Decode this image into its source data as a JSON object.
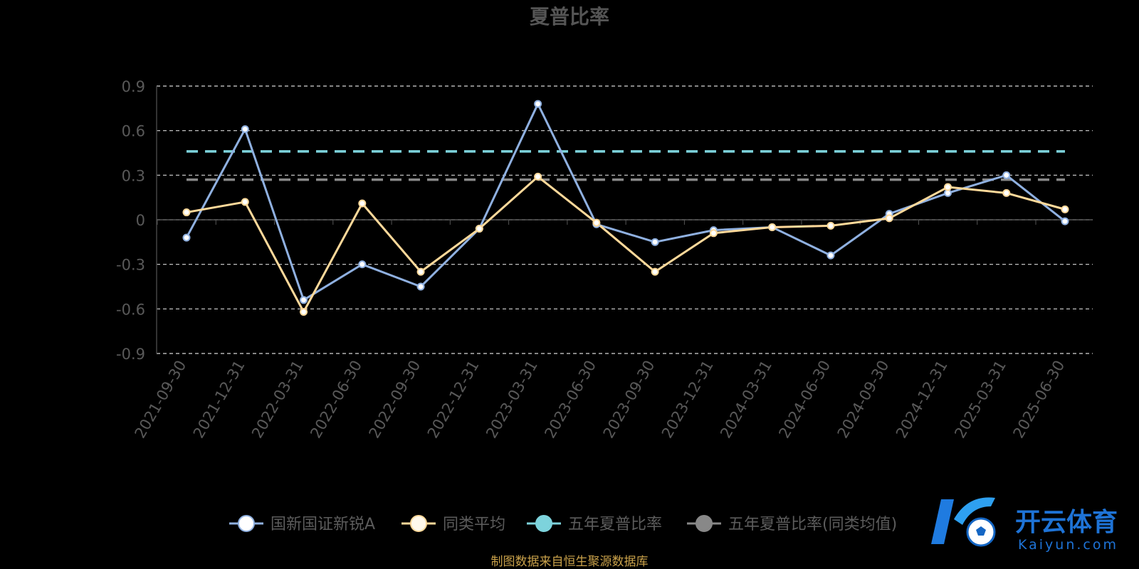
{
  "chart_data": {
    "type": "line",
    "title": "夏普比率",
    "categories": [
      "2021-09-30",
      "2021-12-31",
      "2022-03-31",
      "2022-06-30",
      "2022-09-30",
      "2022-12-31",
      "2023-03-31",
      "2023-06-30",
      "2023-09-30",
      "2023-12-31",
      "2024-03-31",
      "2024-06-30",
      "2024-09-30",
      "2024-12-31",
      "2025-03-31",
      "2025-06-30"
    ],
    "yticks": [
      "0.9",
      "0.6",
      "0.3",
      "0",
      "-0.3",
      "-0.6",
      "-0.9"
    ],
    "ylim": [
      -0.9,
      0.9
    ],
    "grid": true,
    "legend_position": "bottom-center",
    "series": [
      {
        "name": "国新国证新锐A",
        "color": "#8fb0e0",
        "values": [
          -0.12,
          0.61,
          -0.54,
          -0.3,
          -0.45,
          -0.06,
          0.78,
          -0.03,
          -0.15,
          -0.07,
          -0.05,
          -0.24,
          0.04,
          0.18,
          0.3,
          -0.01
        ]
      },
      {
        "name": "同类平均",
        "color": "#ffd99a",
        "values": [
          0.05,
          0.12,
          -0.62,
          0.11,
          -0.35,
          -0.06,
          0.29,
          -0.02,
          -0.35,
          -0.09,
          -0.05,
          -0.04,
          0.01,
          0.22,
          0.18,
          0.07
        ]
      },
      {
        "name": "五年夏普比率",
        "color": "#7dd3dc",
        "dashed": true,
        "value": 0.46
      },
      {
        "name": "五年夏普比率(同类均值)",
        "color": "#888888",
        "dashed": true,
        "value": 0.27
      }
    ]
  },
  "footer": {
    "source": "制图数据来自恒生聚源数据库"
  },
  "logo": {
    "text": "开云体育",
    "subtext": "Kaiyun.com"
  }
}
